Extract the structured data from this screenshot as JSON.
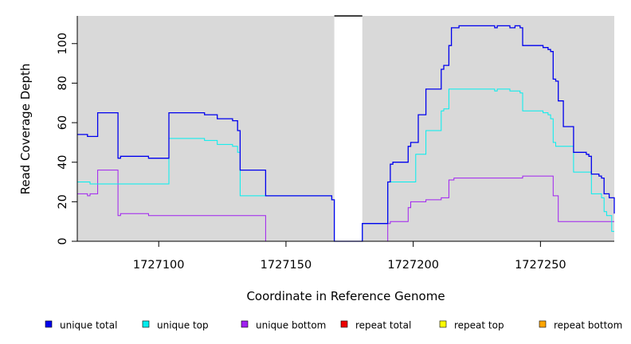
{
  "chart_data": {
    "type": "line",
    "title": "",
    "xlabel": "Coordinate in Reference Genome",
    "ylabel": "Read Coverage Depth",
    "xlim": [
      1727068,
      1727279
    ],
    "ylim": [
      0,
      114
    ],
    "x_ticks": [
      1727100,
      1727150,
      1727200,
      1727250
    ],
    "x_tick_labels": [
      "1727100",
      "1727150",
      "1727200",
      "1727250"
    ],
    "y_ticks": [
      0,
      20,
      40,
      60,
      80,
      100
    ],
    "y_tick_labels": [
      "0",
      "20",
      "40",
      "60",
      "80",
      "100"
    ],
    "grid": false,
    "background_color": "#d9d9d9",
    "gap_regions": [
      [
        1727169,
        1727180
      ]
    ],
    "legend_position": "bottom",
    "series": [
      {
        "name": "unique total",
        "color": "#0000ee",
        "steps": [
          [
            1727068,
            54
          ],
          [
            1727072,
            53
          ],
          [
            1727076,
            65
          ],
          [
            1727084,
            42
          ],
          [
            1727085,
            43
          ],
          [
            1727096,
            42
          ],
          [
            1727104,
            65
          ],
          [
            1727118,
            64
          ],
          [
            1727123,
            62
          ],
          [
            1727129,
            61
          ],
          [
            1727131,
            56
          ],
          [
            1727132,
            36
          ],
          [
            1727142,
            23
          ],
          [
            1727168,
            21
          ],
          [
            1727169,
            0
          ],
          [
            1727180,
            9
          ],
          [
            1727190,
            30
          ],
          [
            1727191,
            39
          ],
          [
            1727192,
            40
          ],
          [
            1727198,
            48
          ],
          [
            1727199,
            50
          ],
          [
            1727202,
            64
          ],
          [
            1727205,
            77
          ],
          [
            1727211,
            87
          ],
          [
            1727212,
            89
          ],
          [
            1727214,
            99
          ],
          [
            1727215,
            108
          ],
          [
            1727218,
            109
          ],
          [
            1727232,
            108
          ],
          [
            1727233,
            109
          ],
          [
            1727238,
            108
          ],
          [
            1727240,
            109
          ],
          [
            1727242,
            108
          ],
          [
            1727243,
            99
          ],
          [
            1727251,
            98
          ],
          [
            1727253,
            97
          ],
          [
            1727254,
            96
          ],
          [
            1727255,
            82
          ],
          [
            1727256,
            81
          ],
          [
            1727257,
            71
          ],
          [
            1727259,
            58
          ],
          [
            1727263,
            45
          ],
          [
            1727268,
            44
          ],
          [
            1727269,
            43
          ],
          [
            1727270,
            34
          ],
          [
            1727273,
            33
          ],
          [
            1727274,
            32
          ],
          [
            1727275,
            24
          ],
          [
            1727277,
            22
          ],
          [
            1727279,
            14
          ]
        ]
      },
      {
        "name": "unique top",
        "color": "#00eeee",
        "steps": [
          [
            1727068,
            30
          ],
          [
            1727073,
            29
          ],
          [
            1727104,
            52
          ],
          [
            1727118,
            51
          ],
          [
            1727123,
            49
          ],
          [
            1727129,
            48
          ],
          [
            1727131,
            45
          ],
          [
            1727132,
            23
          ],
          [
            1727168,
            21
          ],
          [
            1727169,
            0
          ],
          [
            1727180,
            9
          ],
          [
            1727190,
            30
          ],
          [
            1727201,
            44
          ],
          [
            1727205,
            56
          ],
          [
            1727211,
            66
          ],
          [
            1727212,
            67
          ],
          [
            1727214,
            77
          ],
          [
            1727232,
            76
          ],
          [
            1727233,
            77
          ],
          [
            1727238,
            76
          ],
          [
            1727242,
            75
          ],
          [
            1727243,
            66
          ],
          [
            1727251,
            65
          ],
          [
            1727253,
            64
          ],
          [
            1727254,
            62
          ],
          [
            1727255,
            50
          ],
          [
            1727256,
            48
          ],
          [
            1727263,
            35
          ],
          [
            1727270,
            24
          ],
          [
            1727274,
            22
          ],
          [
            1727275,
            15
          ],
          [
            1727276,
            13
          ],
          [
            1727278,
            5
          ]
        ]
      },
      {
        "name": "unique bottom",
        "color": "#a020f0",
        "steps": [
          [
            1727068,
            24
          ],
          [
            1727072,
            23
          ],
          [
            1727073,
            24
          ],
          [
            1727076,
            36
          ],
          [
            1727084,
            13
          ],
          [
            1727085,
            14
          ],
          [
            1727096,
            13
          ],
          [
            1727142,
            0
          ],
          [
            1727190,
            9
          ],
          [
            1727191,
            10
          ],
          [
            1727198,
            17
          ],
          [
            1727199,
            20
          ],
          [
            1727205,
            21
          ],
          [
            1727211,
            22
          ],
          [
            1727214,
            31
          ],
          [
            1727216,
            32
          ],
          [
            1727243,
            33
          ],
          [
            1727255,
            23
          ],
          [
            1727257,
            10
          ],
          [
            1727278,
            10
          ]
        ]
      },
      {
        "name": "repeat total",
        "color": "#ee0000",
        "steps": [
          [
            1727068,
            0
          ],
          [
            1727279,
            0
          ]
        ]
      },
      {
        "name": "repeat top",
        "color": "#ffff00",
        "steps": [
          [
            1727068,
            0
          ],
          [
            1727279,
            0
          ]
        ]
      },
      {
        "name": "repeat bottom",
        "color": "#ffa500",
        "steps": [
          [
            1727068,
            0
          ],
          [
            1727279,
            0
          ]
        ]
      }
    ]
  }
}
